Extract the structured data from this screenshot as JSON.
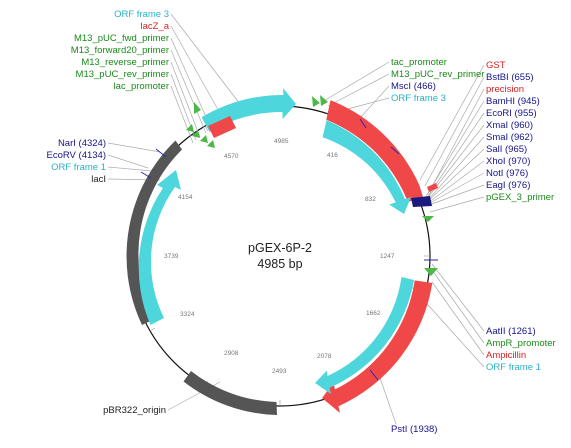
{
  "map": {
    "name": "pGEX-6P-2",
    "length": "4985 bp"
  },
  "colors": {
    "cyan": "#4dd6dc",
    "red": "#f04848",
    "gray": "#555555",
    "green": "#4cb848",
    "navy": "#1a1a80",
    "label_cyan": "#28b4c8",
    "label_red": "#d82020",
    "label_green": "#1a8a1a",
    "label_navy": "#14148c",
    "label_black": "#222222"
  },
  "ticks": [
    "4985",
    "416",
    "832",
    "1247",
    "1662",
    "2078",
    "2493",
    "2908",
    "3324",
    "3739",
    "4154",
    "4570"
  ],
  "labels": {
    "top_left": [
      {
        "text": "ORF frame 3",
        "color": "label_cyan"
      },
      {
        "text": "lacZ_a",
        "color": "label_red"
      },
      {
        "text": "M13_pUC_fwd_primer",
        "color": "label_green"
      },
      {
        "text": "M13_forward20_primer",
        "color": "label_green"
      },
      {
        "text": "M13_reverse_primer",
        "color": "label_green"
      },
      {
        "text": "M13_pUC_rev_primer",
        "color": "label_green"
      },
      {
        "text": "lac_promoter",
        "color": "label_green"
      }
    ],
    "top_mid": [
      {
        "text": "tac_promoter",
        "color": "label_green"
      },
      {
        "text": "M13_pUC_rev_primer",
        "color": "label_green"
      },
      {
        "text": "MscI (466)",
        "color": "label_navy"
      },
      {
        "text": "ORF frame 3",
        "color": "label_cyan"
      }
    ],
    "right": [
      {
        "text": "GST",
        "color": "label_red"
      },
      {
        "text": "BstBI (655)",
        "color": "label_navy"
      },
      {
        "text": "precision",
        "color": "label_red"
      },
      {
        "text": "BamHI (945)",
        "color": "label_navy"
      },
      {
        "text": "EcoRI (955)",
        "color": "label_navy"
      },
      {
        "text": "XmaI (960)",
        "color": "label_navy"
      },
      {
        "text": "SmaI (962)",
        "color": "label_navy"
      },
      {
        "text": "SalI (965)",
        "color": "label_navy"
      },
      {
        "text": "XhoI (970)",
        "color": "label_navy"
      },
      {
        "text": "NotI (976)",
        "color": "label_navy"
      },
      {
        "text": "EagI (976)",
        "color": "label_navy"
      },
      {
        "text": "pGEX_3_primer",
        "color": "label_green"
      }
    ],
    "left": [
      {
        "text": "NarI (4324)",
        "color": "label_navy"
      },
      {
        "text": "EcoRV (4134)",
        "color": "label_navy"
      },
      {
        "text": "ORF frame 1",
        "color": "label_cyan"
      },
      {
        "text": "lacI",
        "color": "label_black"
      }
    ],
    "bottom_right": [
      {
        "text": "AatII (1261)",
        "color": "label_navy"
      },
      {
        "text": "AmpR_promoter",
        "color": "label_green"
      },
      {
        "text": "Ampicillin",
        "color": "label_red"
      },
      {
        "text": "ORF frame 1",
        "color": "label_cyan"
      }
    ],
    "bottom": [
      {
        "text": "PstI (1938)",
        "color": "label_navy"
      },
      {
        "text": "pBR322_origin",
        "color": "label_black"
      }
    ]
  }
}
